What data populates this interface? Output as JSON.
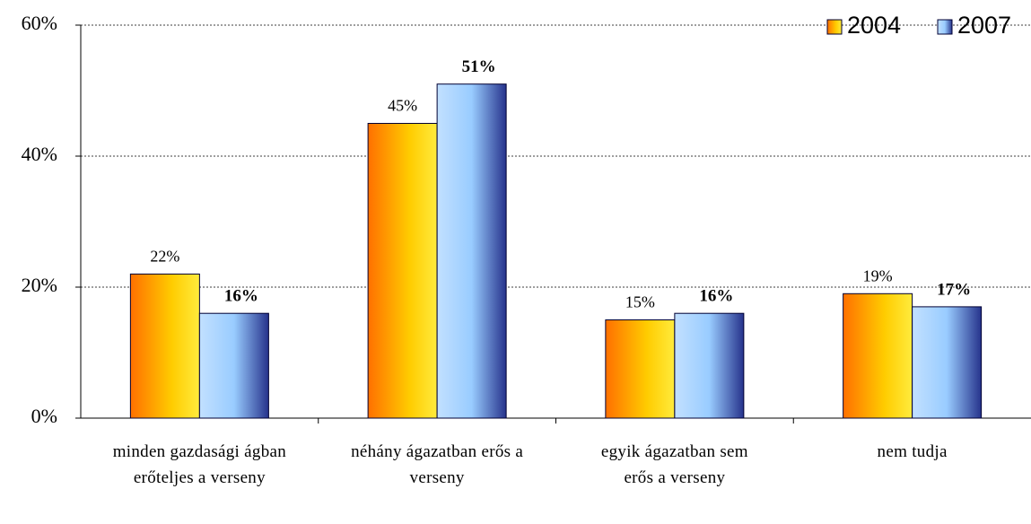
{
  "chart_data": {
    "type": "bar",
    "categories": [
      "minden gazdasági ágban erőteljes a verseny",
      "néhány ágazatban erős a verseny",
      "egyik ágazatban sem erős a verseny",
      "nem tudja"
    ],
    "series": [
      {
        "name": "2004",
        "color": "#ffcc00",
        "values": [
          22,
          45,
          15,
          19
        ],
        "value_labels": [
          "22%",
          "45%",
          "15%",
          "19%"
        ]
      },
      {
        "name": "2007",
        "color": "#99ccff",
        "values": [
          16,
          51,
          16,
          17
        ],
        "value_labels": [
          "16%",
          "51%",
          "16%",
          "17%"
        ]
      }
    ],
    "ylim": [
      0,
      60
    ],
    "yticks": [
      {
        "value": 0,
        "label": "0%"
      },
      {
        "value": 20,
        "label": "20%"
      },
      {
        "value": 40,
        "label": "40%"
      },
      {
        "value": 60,
        "label": "60%"
      }
    ],
    "grid": true,
    "legend": "top-right"
  }
}
